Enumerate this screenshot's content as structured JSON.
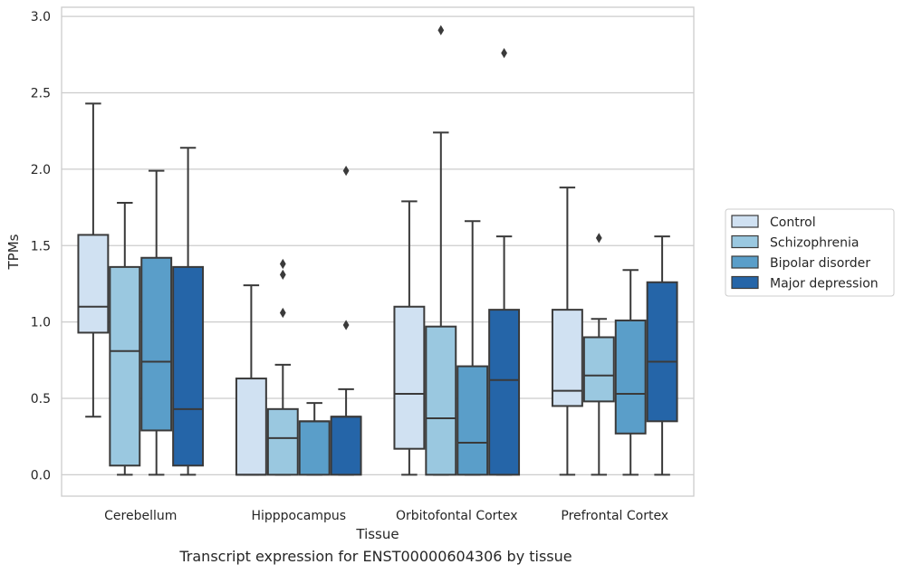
{
  "caption": "Transcript expression for ENST00000604306 by tissue",
  "chart_data": {
    "type": "box",
    "xlabel": "Tissue",
    "ylabel": "TPMs",
    "ylim": [
      -0.14,
      3.06
    ],
    "yticks": [
      0.0,
      0.5,
      1.0,
      1.5,
      2.0,
      2.5,
      3.0
    ],
    "ytick_labels": [
      "0.0",
      "0.5",
      "1.0",
      "1.5",
      "2.0",
      "2.5",
      "3.0"
    ],
    "grid": "horizontal",
    "legend_position": "right",
    "categories": [
      "Cerebellum",
      "Hipppocampus",
      "Orbitofontal Cortex",
      "Prefrontal Cortex"
    ],
    "series": [
      {
        "name": "Control",
        "color": "#d0e1f2",
        "boxes": [
          {
            "whislo": 0.38,
            "q1": 0.93,
            "med": 1.1,
            "q3": 1.57,
            "whishi": 2.43,
            "fliers": []
          },
          {
            "whislo": 0.0,
            "q1": 0.0,
            "med": 0.0,
            "q3": 0.63,
            "whishi": 1.24,
            "fliers": []
          },
          {
            "whislo": 0.0,
            "q1": 0.17,
            "med": 0.53,
            "q3": 1.1,
            "whishi": 1.79,
            "fliers": []
          },
          {
            "whislo": 0.0,
            "q1": 0.45,
            "med": 0.55,
            "q3": 1.08,
            "whishi": 1.88,
            "fliers": []
          }
        ]
      },
      {
        "name": "Schizophrenia",
        "color": "#9ac8e0",
        "boxes": [
          {
            "whislo": 0.0,
            "q1": 0.06,
            "med": 0.81,
            "q3": 1.36,
            "whishi": 1.78,
            "fliers": []
          },
          {
            "whislo": 0.0,
            "q1": 0.0,
            "med": 0.24,
            "q3": 0.43,
            "whishi": 0.72,
            "fliers": [
              1.06,
              1.31,
              1.38
            ]
          },
          {
            "whislo": 0.0,
            "q1": 0.0,
            "med": 0.37,
            "q3": 0.97,
            "whishi": 2.24,
            "fliers": [
              2.91
            ]
          },
          {
            "whislo": 0.0,
            "q1": 0.48,
            "med": 0.65,
            "q3": 0.9,
            "whishi": 1.02,
            "fliers": [
              1.55
            ]
          }
        ]
      },
      {
        "name": "Bipolar disorder",
        "color": "#5a9ec9",
        "boxes": [
          {
            "whislo": 0.0,
            "q1": 0.29,
            "med": 0.74,
            "q3": 1.42,
            "whishi": 1.99,
            "fliers": []
          },
          {
            "whislo": 0.0,
            "q1": 0.0,
            "med": 0.35,
            "q3": 0.35,
            "whishi": 0.47,
            "fliers": []
          },
          {
            "whislo": 0.0,
            "q1": 0.0,
            "med": 0.21,
            "q3": 0.71,
            "whishi": 1.66,
            "fliers": []
          },
          {
            "whislo": 0.0,
            "q1": 0.27,
            "med": 0.53,
            "q3": 1.01,
            "whishi": 1.34,
            "fliers": []
          }
        ]
      },
      {
        "name": "Major depression",
        "color": "#2565a8",
        "boxes": [
          {
            "whislo": 0.0,
            "q1": 0.06,
            "med": 0.43,
            "q3": 1.36,
            "whishi": 2.14,
            "fliers": []
          },
          {
            "whislo": 0.0,
            "q1": 0.0,
            "med": 0.38,
            "q3": 0.38,
            "whishi": 0.56,
            "fliers": [
              0.98,
              1.99
            ]
          },
          {
            "whislo": 0.0,
            "q1": 0.0,
            "med": 0.62,
            "q3": 1.08,
            "whishi": 1.56,
            "fliers": [
              2.76
            ]
          },
          {
            "whislo": 0.0,
            "q1": 0.35,
            "med": 0.74,
            "q3": 1.26,
            "whishi": 1.56,
            "fliers": []
          }
        ]
      }
    ]
  }
}
